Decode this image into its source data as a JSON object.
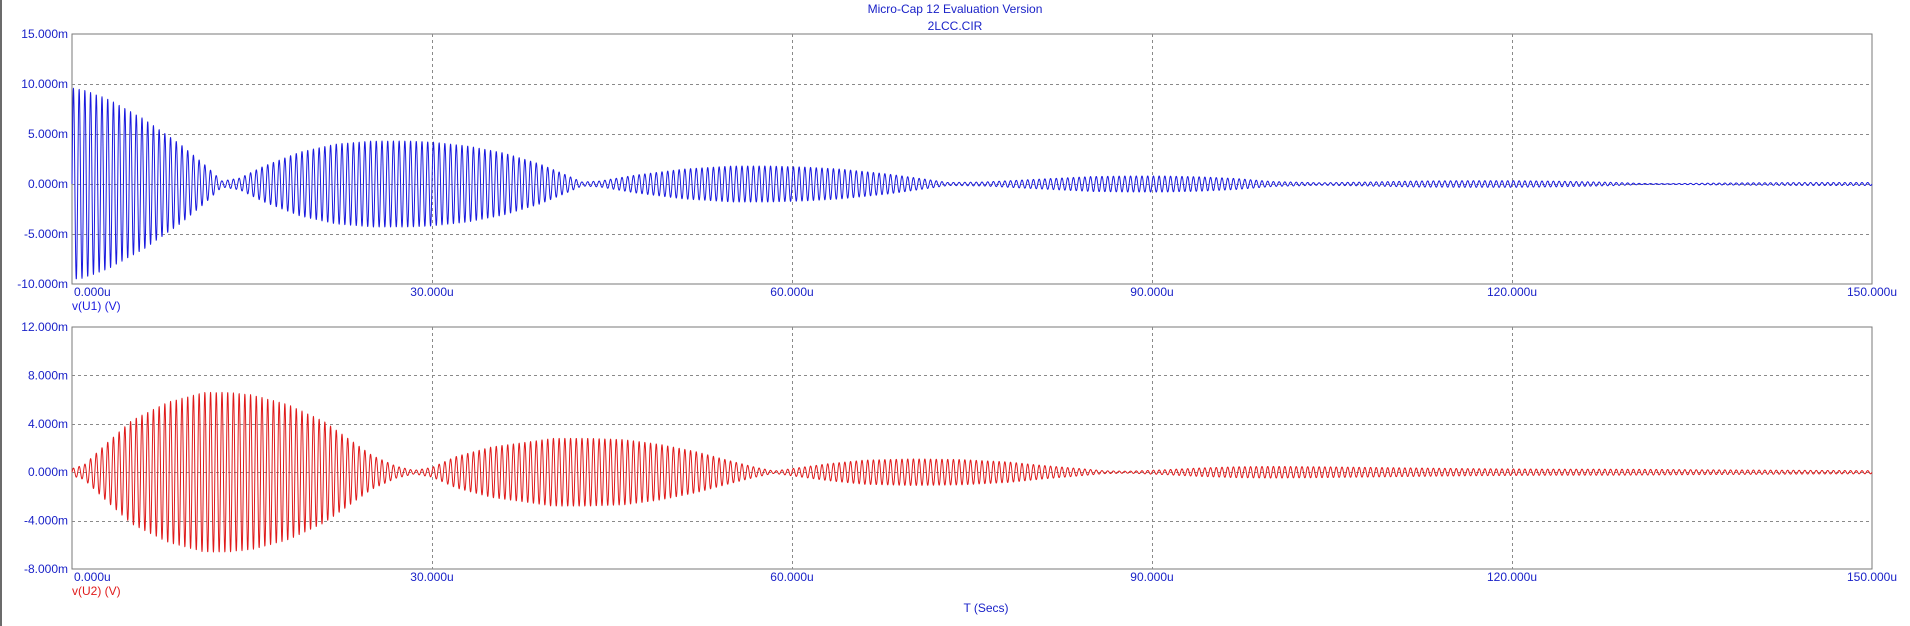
{
  "window": {
    "title": "Micro-Cap 12 Evaluation Version",
    "subtitle": "2LCC.CIR"
  },
  "colors": {
    "trace1": "#1a1adf",
    "trace2": "#e01b1b",
    "grid": "#8a8a8a",
    "frame": "#7a7a7a",
    "y_tick_label": "#1a22c8",
    "x_tick_label": "#1a22c8",
    "xlabel": "#1a22c8"
  },
  "chart_data": [
    {
      "type": "line",
      "name": "top-plot",
      "series": [
        {
          "name": "v(U1) (V)",
          "color": "#1a1adf",
          "frequency_hz": 2100000,
          "amplitude_envelope": {
            "x_us": [
              0,
              1,
              3,
              6,
              9,
              11,
              12.5,
              14,
              16,
              19,
              22,
              25,
              28,
              30,
              33,
              36,
              39,
              41,
              42.5,
              44,
              47,
              51,
              55,
              58,
              61,
              64,
              68,
              71,
              73,
              76,
              80,
              85,
              88,
              91,
              94,
              97,
              100,
              104,
              108,
              112,
              116,
              120,
              124,
              128,
              131,
              133,
              136,
              140,
              145,
              150
            ],
            "envelope_mV": [
              9.6,
              9.4,
              8.5,
              6.5,
              4.0,
              2.0,
              0.3,
              0.6,
              1.8,
              3.2,
              4.0,
              4.3,
              4.3,
              4.2,
              3.8,
              3.1,
              2.0,
              1.0,
              0.2,
              0.3,
              0.9,
              1.5,
              1.8,
              1.8,
              1.7,
              1.5,
              1.0,
              0.5,
              0.15,
              0.2,
              0.45,
              0.75,
              0.8,
              0.8,
              0.72,
              0.55,
              0.25,
              0.12,
              0.2,
              0.3,
              0.33,
              0.33,
              0.28,
              0.18,
              0.05,
              0.03,
              0.08,
              0.12,
              0.15,
              0.15
            ]
          }
        }
      ],
      "xlim": [
        0,
        150
      ],
      "ylim": [
        -10,
        15
      ],
      "x_ticks": [
        0,
        30,
        60,
        90,
        120,
        150
      ],
      "x_tick_labels": [
        "0.000u",
        "30.000u",
        "60.000u",
        "90.000u",
        "120.000u",
        "150.000u"
      ],
      "y_ticks": [
        -10,
        -5,
        0,
        5,
        10,
        15
      ],
      "y_tick_labels": [
        "-10.000m",
        "-5.000m",
        "0.000m",
        "5.000m",
        "10.000m",
        "15.000m"
      ],
      "xlabel": "",
      "series_label": "v(U1) (V)",
      "grid": true
    },
    {
      "type": "line",
      "name": "bottom-plot",
      "series": [
        {
          "name": "v(U2) (V)",
          "color": "#e01b1b",
          "frequency_hz": 2100000,
          "amplitude_envelope": {
            "x_us": [
              0,
              1,
              3,
              5,
              8,
              11,
              13,
              15,
              18,
              21,
              23,
              25,
              27,
              28.5,
              30,
              32,
              35,
              38,
              40,
              43,
              46,
              49,
              52,
              55,
              57,
              58.5,
              60,
              63,
              66,
              70,
              74,
              78,
              81,
              84,
              86,
              88,
              91,
              94,
              97,
              100,
              104,
              108,
              112,
              116,
              120,
              124,
              128,
              132,
              136,
              140,
              145,
              150
            ],
            "envelope_mV": [
              0.3,
              0.6,
              2.5,
              4.3,
              5.8,
              6.6,
              6.6,
              6.4,
              5.6,
              4.2,
              2.8,
              1.4,
              0.5,
              0.15,
              0.4,
              1.3,
              2.1,
              2.5,
              2.8,
              2.8,
              2.7,
              2.3,
              1.7,
              0.9,
              0.4,
              0.1,
              0.3,
              0.7,
              1.0,
              1.1,
              1.05,
              0.85,
              0.55,
              0.3,
              0.12,
              0.08,
              0.2,
              0.35,
              0.45,
              0.48,
              0.45,
              0.4,
              0.35,
              0.3,
              0.27,
              0.25,
              0.25,
              0.23,
              0.2,
              0.18,
              0.15,
              0.13
            ]
          }
        }
      ],
      "xlim": [
        0,
        150
      ],
      "ylim": [
        -8,
        12
      ],
      "x_ticks": [
        0,
        30,
        60,
        90,
        120,
        150
      ],
      "x_tick_labels": [
        "0.000u",
        "30.000u",
        "60.000u",
        "90.000u",
        "120.000u",
        "150.000u"
      ],
      "y_ticks": [
        -8,
        -4,
        0,
        4,
        8,
        12
      ],
      "y_tick_labels": [
        "-8.000m",
        "-4.000m",
        "0.000m",
        "4.000m",
        "8.000m",
        "12.000m"
      ],
      "xlabel": "T (Secs)",
      "series_label": "v(U2) (V)",
      "grid": true
    }
  ]
}
